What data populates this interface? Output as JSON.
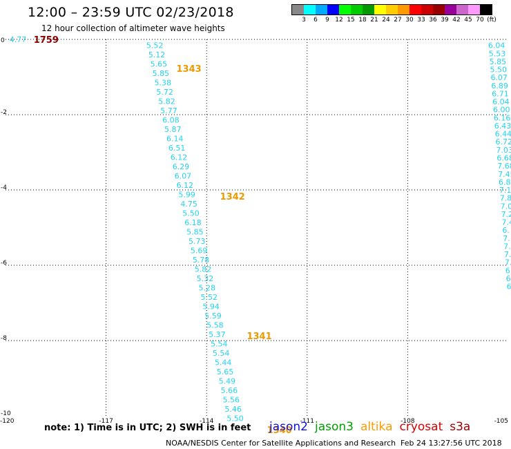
{
  "header": {
    "title": "12:00 – 23:59 UTC 02/23/2018",
    "subtitle": "12 hour collection of altimeter wave heights"
  },
  "legend": {
    "colors": [
      "#888888",
      "#00ffff",
      "#00aaff",
      "#0000ff",
      "#00ff00",
      "#00cc00",
      "#009900",
      "#ffff00",
      "#ffcc00",
      "#ff9900",
      "#ff0000",
      "#cc0000",
      "#990000",
      "#990099",
      "#cc66cc",
      "#ff99ff",
      "#000000"
    ],
    "tick_labels": [
      "3",
      "6",
      "9",
      "12",
      "15",
      "18",
      "21",
      "24",
      "27",
      "30",
      "33",
      "36",
      "39",
      "42",
      "45",
      "70",
      "(ft)"
    ]
  },
  "chart_data": {
    "type": "scatter",
    "x_ticks": [
      "-120",
      "-117",
      "-114",
      "-111",
      "-108",
      "-105"
    ],
    "y_ticks": [
      "0",
      "-2",
      "-4",
      "-6",
      "-8",
      "-10"
    ],
    "xlim": [
      -120,
      -105
    ],
    "ylim": [
      -10,
      0
    ],
    "grid": true,
    "track_center": {
      "name": "altika",
      "lon_start": -115.8,
      "lat_start": -0.05,
      "lon_end": -113.4,
      "lat_end": -9.95,
      "values": [
        "5.52",
        "5.12",
        "5.65",
        "5.85",
        "5.38",
        "5.72",
        "5.82",
        "5.77",
        "6.08",
        "5.87",
        "6.14",
        "6.51",
        "6.12",
        "6.29",
        "6.07",
        "6.12",
        "5.99",
        "4.75",
        "5.50",
        "6.18",
        "5.85",
        "5.73",
        "5.69",
        "5.78",
        "5.82",
        "5.32",
        "5.28",
        "5.52",
        "5.94",
        "5.59",
        "5.58",
        "5.37",
        "5.54",
        "5.54",
        "5.44",
        "5.65",
        "5.49",
        "5.66",
        "5.56",
        "5.46",
        "5.50"
      ]
    },
    "track_right": {
      "lon_start": -105.6,
      "lat_start": -0.05,
      "lon_end": -105.05,
      "lat_end": -6.45,
      "values": [
        "6.04",
        "5.53",
        "5.85",
        "5.50",
        "6.07",
        "6.89",
        "6.71",
        "6.04",
        "6.00",
        "6.16",
        "6.43",
        "6.44",
        "6.72",
        "7.03",
        "6.68",
        "7.68",
        "7.45",
        "6.8",
        "7.1",
        "7.8",
        "7.0",
        "7.2",
        "7.4",
        "6.",
        "7.",
        "7.",
        "7.",
        "7.",
        "6.",
        "6.",
        "6."
      ]
    },
    "left_edge": {
      "value": "4.77",
      "timestamp": "1759",
      "lon": -119.8,
      "lat": 0
    },
    "timestamps": [
      {
        "label": "1343",
        "lon": -114.9,
        "lat": -0.4
      },
      {
        "label": "1342",
        "lon": -113.6,
        "lat": -3.8
      },
      {
        "label": "1341",
        "lon": -112.8,
        "lat": -7.5
      },
      {
        "label": "1340",
        "lon": -112.2,
        "lat": -10.0
      }
    ]
  },
  "footer": {
    "note": "note: 1) Time is in UTC; 2) SWH is in feet",
    "satellites": [
      {
        "name": "jason2",
        "color": "#1010dd"
      },
      {
        "name": "jason3",
        "color": "#00a000"
      },
      {
        "name": "altika",
        "color": "#ff9900"
      },
      {
        "name": "cryosat",
        "color": "#dd0000"
      },
      {
        "name": "s3a",
        "color": "#990000"
      }
    ],
    "credit": "NOAA/NESDIS Center for Satellite Applications and Research",
    "generated": "Feb 24 13:27:56 UTC 2018"
  },
  "colors": {
    "value_text": "#22d3ee",
    "timestamp_orange": "#ee9900",
    "timestamp_dark": "#880000",
    "grid": "#000000"
  }
}
